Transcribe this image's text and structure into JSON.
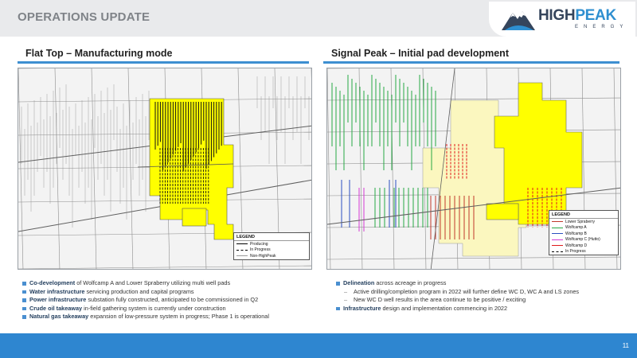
{
  "header": {
    "title": "OPERATIONS UPDATE"
  },
  "logo": {
    "word_high": "HIGH",
    "word_peak": "PEAK",
    "sub": "ENERGY"
  },
  "left_panel": {
    "title": "Flat Top – Manufacturing mode",
    "legend": {
      "title": "LEGEND",
      "items": [
        {
          "label": "Producing",
          "style": "solid",
          "color": "#000000"
        },
        {
          "label": "In Progress",
          "style": "dashed",
          "color": "#000000"
        },
        {
          "label": "Non-HighPeak",
          "style": "solid",
          "color": "#9a9a9a"
        }
      ]
    },
    "bullets": [
      {
        "bold": "Co-development",
        "text": " of Wolfcamp A and Lower Spraberry utilizing multi well pads"
      },
      {
        "bold": "Water infrastructure",
        "text": " servicing production and capital programs"
      },
      {
        "bold": "Power infrastructure",
        "text": " substation fully constructed, anticipated to be commissioned in Q2"
      },
      {
        "bold": "Crude oil takeaway",
        "text": " in-field gathering system is currently under construction"
      },
      {
        "bold": "Natural gas takeaway",
        "text": " expansion of low-pressure system in progress; Phase 1 is operational"
      }
    ]
  },
  "right_panel": {
    "title": "Signal Peak – Initial pad development",
    "legend": {
      "title": "LEGEND",
      "items": [
        {
          "label": "Lower Spraberry",
          "style": "solid",
          "color": "#c0392b"
        },
        {
          "label": "Wolfcamp A",
          "style": "solid",
          "color": "#27a844"
        },
        {
          "label": "Wolfcamp B",
          "style": "solid",
          "color": "#2b4fc0"
        },
        {
          "label": "Wolfcamp C (Hutto)",
          "style": "solid",
          "color": "#d43ad4"
        },
        {
          "label": "Wolfcamp D",
          "style": "solid",
          "color": "#e01b1b"
        },
        {
          "label": "In Progress",
          "style": "dashed",
          "color": "#000000"
        }
      ]
    },
    "bullets": [
      {
        "level": 1,
        "bold": "Delineation",
        "text": " across acreage in progress"
      },
      {
        "level": 2,
        "bold": "",
        "text": "Active drilling/completion program in 2022 will further define WC D, WC A and LS zones"
      },
      {
        "level": 2,
        "bold": "",
        "text": "New WC D well results in the area continue to be positive / exciting"
      },
      {
        "level": 1,
        "bold": "Infrastructure",
        "text": " design and implementation commencing in 2022"
      }
    ]
  },
  "footer": {
    "page_number": "11"
  },
  "colors": {
    "accent": "#2e86d0",
    "acreage": "#ffff00",
    "acreage_light": "#fbf7bf",
    "non_highpeak": "#9a9a9a"
  }
}
